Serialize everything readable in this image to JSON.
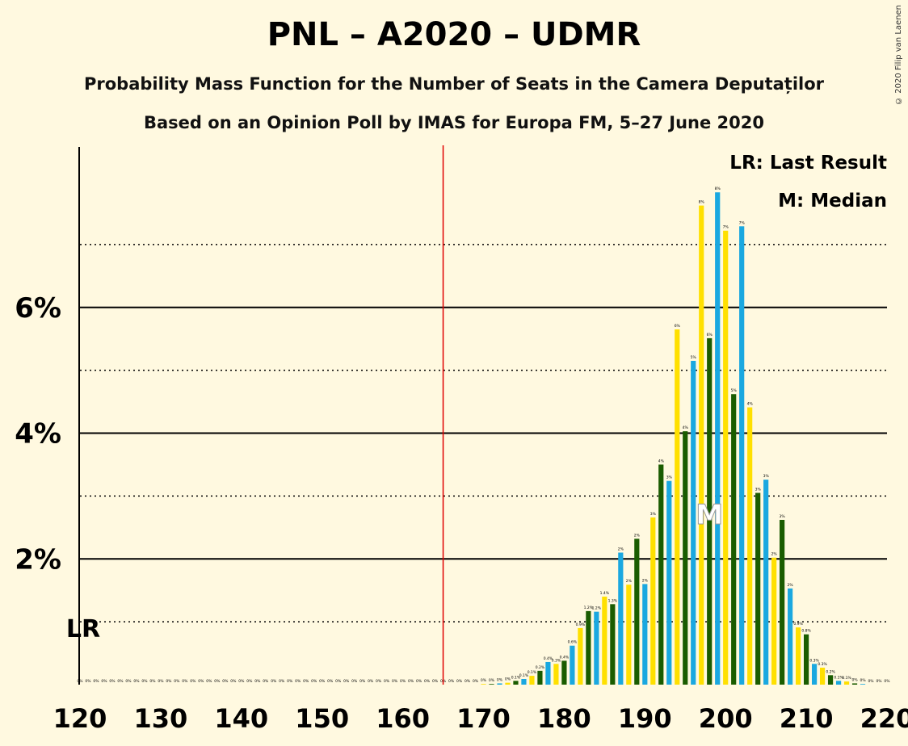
{
  "title": "PNL – A2020 – UDMR",
  "subtitle1": "Probability Mass Function for the Number of Seats in the Camera Deputaților",
  "subtitle2": "Based on an Opinion Poll by IMAS for Europa FM, 5–27 June 2020",
  "copyright": "© 2020 Filip van Laenen",
  "legend": {
    "lr": "LR: Last Result",
    "median": "M: Median"
  },
  "markers": {
    "lr_label": "LR",
    "median_label": "M"
  },
  "colors": {
    "background": "#FFF9E0",
    "green": "#1A5C00",
    "blue": "#1AA8E0",
    "yellow": "#FFE000",
    "last_result_line": "#E00000"
  },
  "chart_data": {
    "type": "bar",
    "xlabel": "",
    "ylabel": "",
    "x_range": [
      120,
      220
    ],
    "x_ticks": [
      "120",
      "130",
      "140",
      "150",
      "160",
      "170",
      "180",
      "190",
      "200",
      "210",
      "220"
    ],
    "y_range": [
      0,
      0.08
    ],
    "y_ticks": [
      "2%",
      "4%",
      "6%"
    ],
    "last_result": 165,
    "median": 198,
    "series": [
      {
        "values": [
          {
            "x": 120,
            "y": 0
          },
          {
            "x": 121,
            "y": 0
          },
          {
            "x": 122,
            "y": 0
          },
          {
            "x": 123,
            "y": 0
          },
          {
            "x": 124,
            "y": 0
          },
          {
            "x": 125,
            "y": 0
          },
          {
            "x": 126,
            "y": 0
          },
          {
            "x": 127,
            "y": 0
          },
          {
            "x": 128,
            "y": 0
          },
          {
            "x": 129,
            "y": 0
          },
          {
            "x": 130,
            "y": 0
          },
          {
            "x": 131,
            "y": 0
          },
          {
            "x": 132,
            "y": 0
          },
          {
            "x": 133,
            "y": 0
          },
          {
            "x": 134,
            "y": 0
          },
          {
            "x": 135,
            "y": 0
          },
          {
            "x": 136,
            "y": 0
          },
          {
            "x": 137,
            "y": 0
          },
          {
            "x": 138,
            "y": 0
          },
          {
            "x": 139,
            "y": 0
          },
          {
            "x": 140,
            "y": 0
          },
          {
            "x": 141,
            "y": 0
          },
          {
            "x": 142,
            "y": 0
          },
          {
            "x": 143,
            "y": 0
          },
          {
            "x": 144,
            "y": 0
          },
          {
            "x": 145,
            "y": 0
          },
          {
            "x": 146,
            "y": 0
          },
          {
            "x": 147,
            "y": 0
          },
          {
            "x": 148,
            "y": 0
          },
          {
            "x": 149,
            "y": 0
          },
          {
            "x": 150,
            "y": 0
          },
          {
            "x": 151,
            "y": 0
          },
          {
            "x": 152,
            "y": 0
          },
          {
            "x": 153,
            "y": 0
          },
          {
            "x": 154,
            "y": 0
          },
          {
            "x": 155,
            "y": 0
          },
          {
            "x": 156,
            "y": 0
          },
          {
            "x": 157,
            "y": 0
          },
          {
            "x": 158,
            "y": 0
          },
          {
            "x": 159,
            "y": 0
          },
          {
            "x": 160,
            "y": 0
          },
          {
            "x": 161,
            "y": 0
          },
          {
            "x": 162,
            "y": 0
          },
          {
            "x": 163,
            "y": 0
          },
          {
            "x": 164,
            "y": 0
          },
          {
            "x": 165,
            "y": 0
          },
          {
            "x": 166,
            "y": 0
          },
          {
            "x": 167,
            "y": 0
          },
          {
            "x": 168,
            "y": 0
          },
          {
            "x": 169,
            "y": 0
          },
          {
            "x": 170,
            "y": 0.0001
          },
          {
            "x": 171,
            "y": 0.0001
          },
          {
            "x": 172,
            "y": 0.0002
          },
          {
            "x": 173,
            "y": 0.0003
          },
          {
            "x": 174,
            "y": 0.0006
          },
          {
            "x": 175,
            "y": 0.0009
          },
          {
            "x": 176,
            "y": 0.0014
          },
          {
            "x": 177,
            "y": 0.0022
          },
          {
            "x": 178,
            "y": 0.0036
          },
          {
            "x": 179,
            "y": 0.0033
          },
          {
            "x": 180,
            "y": 0.0038
          },
          {
            "x": 181,
            "y": 0.0062
          },
          {
            "x": 182,
            "y": 0.009
          },
          {
            "x": 183,
            "y": 0.0117
          },
          {
            "x": 184,
            "y": 0.0116
          },
          {
            "x": 185,
            "y": 0.014
          },
          {
            "x": 186,
            "y": 0.0128
          },
          {
            "x": 187,
            "y": 0.021
          },
          {
            "x": 188,
            "y": 0.0159
          },
          {
            "x": 189,
            "y": 0.0232
          },
          {
            "x": 190,
            "y": 0.016
          },
          {
            "x": 191,
            "y": 0.0266
          },
          {
            "x": 192,
            "y": 0.035
          },
          {
            "x": 193,
            "y": 0.0324
          },
          {
            "x": 194,
            "y": 0.0565
          },
          {
            "x": 195,
            "y": 0.0403
          },
          {
            "x": 196,
            "y": 0.0515
          },
          {
            "x": 197,
            "y": 0.0762
          },
          {
            "x": 198,
            "y": 0.0551
          },
          {
            "x": 199,
            "y": 0.0783
          },
          {
            "x": 200,
            "y": 0.0722
          },
          {
            "x": 201,
            "y": 0.0462
          },
          {
            "x": 202,
            "y": 0.0729
          },
          {
            "x": 203,
            "y": 0.0441
          },
          {
            "x": 204,
            "y": 0.0305
          },
          {
            "x": 205,
            "y": 0.0326
          },
          {
            "x": 206,
            "y": 0.0202
          },
          {
            "x": 207,
            "y": 0.0262
          },
          {
            "x": 208,
            "y": 0.0153
          },
          {
            "x": 209,
            "y": 0.0091
          },
          {
            "x": 210,
            "y": 0.008
          },
          {
            "x": 211,
            "y": 0.0033
          },
          {
            "x": 212,
            "y": 0.0027
          },
          {
            "x": 213,
            "y": 0.0015
          },
          {
            "x": 214,
            "y": 0.0006
          },
          {
            "x": 215,
            "y": 0.0005
          },
          {
            "x": 216,
            "y": 0.0002
          },
          {
            "x": 217,
            "y": 0.0001
          },
          {
            "x": 218,
            "y": 0
          },
          {
            "x": 219,
            "y": 0
          },
          {
            "x": 220,
            "y": 0
          }
        ]
      }
    ],
    "bar_labels": {
      "170": "0%",
      "171": "0%",
      "172": "0%",
      "173": "0%",
      "174": "0.1%",
      "175": "0.1%",
      "176": "0.1%",
      "177": "0.2%",
      "178": "0.4%",
      "179": "0.3%",
      "180": "0.4%",
      "181": "0.6%",
      "182": "0.9%",
      "183": "1.2%",
      "184": "1.2%",
      "185": "1.4%",
      "186": "1.3%",
      "187": "2%",
      "188": "2%",
      "189": "2%",
      "190": "2%",
      "191": "3%",
      "192": "4%",
      "193": "3%",
      "194": "6%",
      "195": "4%",
      "196": "5%",
      "197": "8%",
      "198": "6%",
      "199": "8%",
      "200": "7%",
      "201": "5%",
      "202": "7%",
      "203": "4%",
      "204": "3%",
      "205": "3%",
      "206": "2%",
      "207": "3%",
      "208": "2%",
      "209": "0.9%",
      "210": "0.8%",
      "211": "0.3%",
      "212": "0.3%",
      "213": "0.2%",
      "214": "0.1%",
      "215": "0.1%",
      "216": "0%",
      "217": "0%",
      "218": "0%",
      "219": "0%",
      "220": "0%"
    }
  }
}
